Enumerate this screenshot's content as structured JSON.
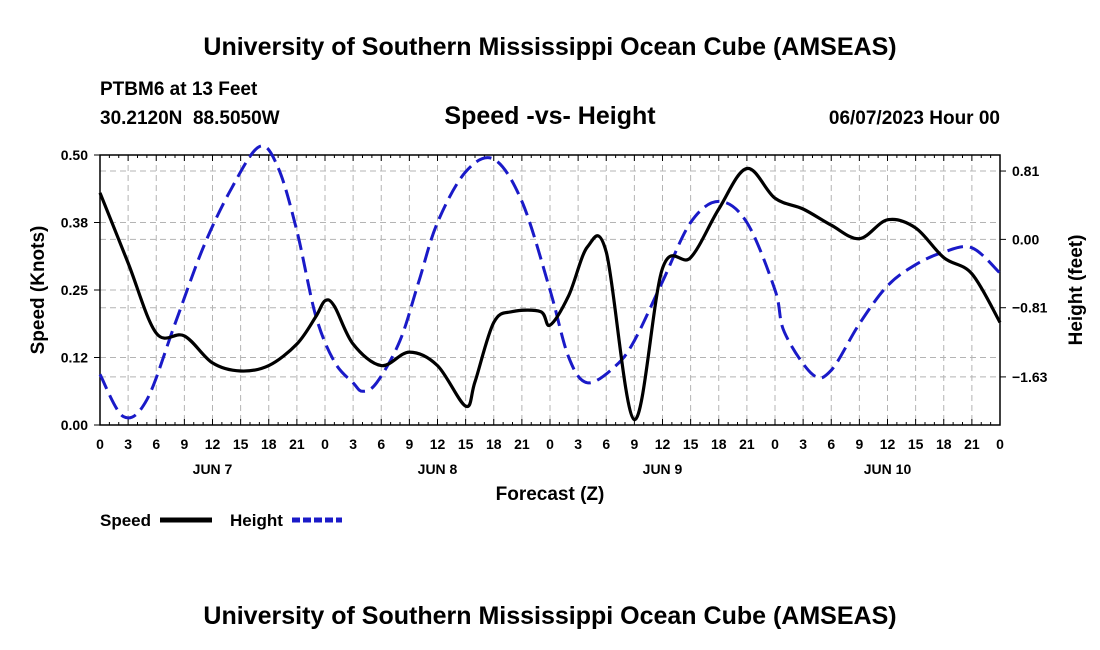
{
  "header": {
    "title": "University of Southern Mississippi Ocean Cube (AMSEAS)",
    "station": "PTBM6 at 13 Feet",
    "coords": "30.2120N  88.5050W",
    "subtitle": "Speed -vs- Height",
    "date": "06/07/2023 Hour 00"
  },
  "footer": {
    "title": "University of Southern Mississippi Ocean Cube (AMSEAS)"
  },
  "colors": {
    "speed": "#000000",
    "height": "#1a1ac8",
    "grid": "#b4b4b4"
  },
  "chart_data": {
    "type": "line",
    "xlabel": "Forecast (Z)",
    "ylabel": "Speed (Knots)",
    "y2label": "Height (feet)",
    "x_range_hours": [
      0,
      96
    ],
    "ylim": [
      0,
      0.5
    ],
    "y2lim": [
      -2.2,
      1.0
    ],
    "yticks": [
      "0.00",
      "0.12",
      "0.25",
      "0.38",
      "0.50"
    ],
    "y2ticks": [
      "0.81",
      "0.00",
      "−0.81",
      "−1.63"
    ],
    "y2tick_values": [
      0.81,
      0.0,
      -0.81,
      -1.63
    ],
    "x_tick_labels": [
      "0",
      "3",
      "6",
      "9",
      "12",
      "15",
      "18",
      "21",
      "0",
      "3",
      "6",
      "9",
      "12",
      "15",
      "18",
      "21",
      "0",
      "3",
      "6",
      "9",
      "12",
      "15",
      "18",
      "21",
      "0",
      "3",
      "6",
      "9",
      "12",
      "15",
      "18",
      "21",
      "0"
    ],
    "day_labels": [
      "JUN 7",
      "JUN 8",
      "JUN 9",
      "JUN 10"
    ],
    "legend": [
      {
        "name": "Speed",
        "style": "solid"
      },
      {
        "name": "Height",
        "style": "dashed"
      }
    ],
    "series": [
      {
        "name": "Speed",
        "axis": "left",
        "x": [
          0,
          3,
          6,
          9,
          12,
          15,
          18,
          21,
          23,
          24,
          25,
          27,
          30,
          33,
          36,
          39,
          40,
          42,
          44,
          47,
          48,
          50,
          52,
          54,
          57,
          60,
          63,
          66,
          69,
          72,
          75,
          78,
          81,
          84,
          87,
          90,
          93,
          96
        ],
        "y": [
          0.43,
          0.3,
          0.17,
          0.165,
          0.115,
          0.1,
          0.11,
          0.15,
          0.2,
          0.23,
          0.22,
          0.15,
          0.11,
          0.135,
          0.11,
          0.035,
          0.08,
          0.19,
          0.21,
          0.21,
          0.185,
          0.24,
          0.33,
          0.32,
          0.01,
          0.29,
          0.31,
          0.4,
          0.475,
          0.42,
          0.4,
          0.37,
          0.345,
          0.38,
          0.365,
          0.31,
          0.28,
          0.19
        ]
      },
      {
        "name": "Height",
        "axis": "right",
        "x": [
          0,
          2.5,
          5,
          8,
          11,
          14,
          17,
          19,
          21,
          23,
          25,
          27,
          28,
          29.5,
          32,
          34,
          36,
          39,
          42,
          45,
          48,
          50,
          52,
          55,
          57,
          60,
          63,
          66,
          69,
          72,
          73,
          76,
          78,
          81,
          84,
          87,
          90,
          93,
          96
        ],
        "y": [
          -1.6,
          -2.1,
          -1.9,
          -1.0,
          -0.1,
          0.6,
          1.1,
          0.85,
          0.1,
          -0.9,
          -1.45,
          -1.7,
          -1.8,
          -1.7,
          -1.2,
          -0.5,
          0.2,
          0.8,
          0.95,
          0.45,
          -0.6,
          -1.4,
          -1.7,
          -1.5,
          -1.2,
          -0.5,
          0.2,
          0.45,
          0.2,
          -0.6,
          -1.1,
          -1.6,
          -1.55,
          -1.0,
          -0.55,
          -0.3,
          -0.15,
          -0.1,
          -0.4
        ]
      }
    ]
  }
}
